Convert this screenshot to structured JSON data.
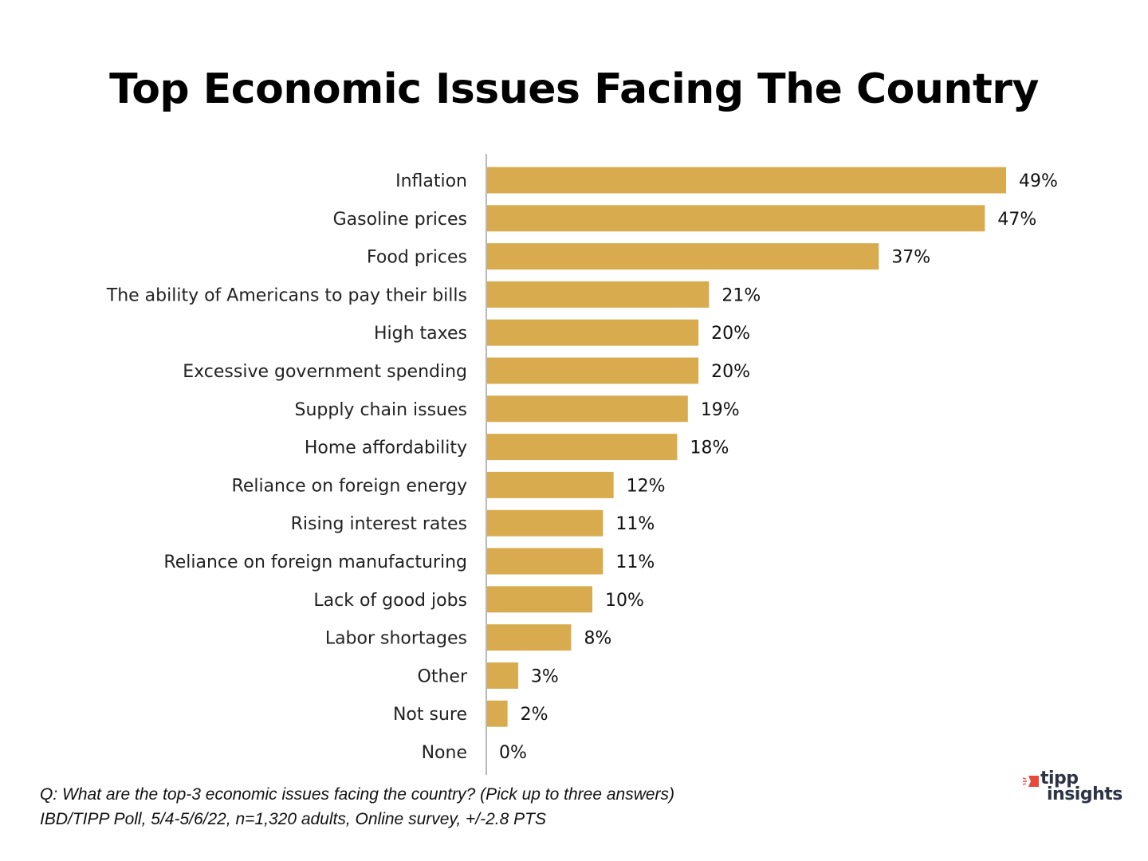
{
  "chart_data": {
    "type": "bar",
    "orientation": "horizontal",
    "title": "Top Economic Issues Facing The Country",
    "categories": [
      "Inflation",
      "Gasoline prices",
      "Food prices",
      "The ability of Americans to pay their bills",
      "High taxes",
      "Excessive government spending",
      "Supply chain issues",
      "Home affordability",
      "Reliance on foreign energy",
      "Rising interest rates",
      "Reliance on foreign manufacturing",
      "Lack of good jobs",
      "Labor shortages",
      "Other",
      "Not sure",
      "None"
    ],
    "values": [
      49,
      47,
      37,
      21,
      20,
      20,
      19,
      18,
      12,
      11,
      11,
      10,
      8,
      3,
      2,
      0
    ],
    "value_labels": [
      "49%",
      "47%",
      "37%",
      "21%",
      "20%",
      "20%",
      "19%",
      "18%",
      "12%",
      "11%",
      "11%",
      "10%",
      "8%",
      "3%",
      "2%",
      "0%"
    ],
    "xlabel": "",
    "ylabel": "",
    "xlim": [
      0,
      49
    ],
    "unit": "%",
    "grid": false,
    "legend": "none",
    "bar_color": "#d8ac4e",
    "axis_color": "#b8b8be"
  },
  "footnotes": {
    "question": "Q:  What are the top-3 economic issues facing the country? (Pick up to three answers)",
    "source": "IBD/TIPP Poll, 5/4-5/6/22, n=1,320 adults, Online survey, +/-2.8 PTS"
  },
  "logo": {
    "line1": "tipp",
    "line2": "insights",
    "accent_color": "#e8493a",
    "text_color": "#2d3447"
  }
}
